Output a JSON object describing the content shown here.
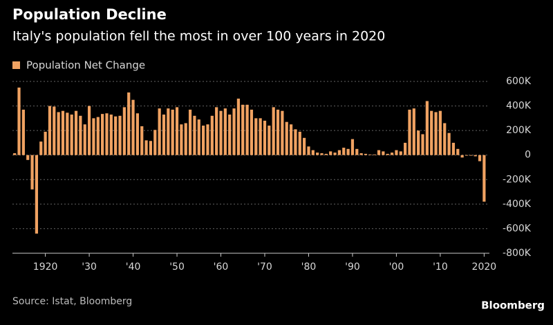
{
  "chart_data": {
    "type": "bar",
    "title": "Population Decline",
    "subtitle": "Italy's population fell the most in over 100 years in 2020",
    "source": "Source: Istat, Bloomberg",
    "brand": "Bloomberg",
    "color": "#f0a262",
    "grid": true,
    "legend": "top-left",
    "series": [
      {
        "name": "Population Net Change",
        "color": "#f0a262",
        "x": [
          1913,
          1914,
          1915,
          1916,
          1917,
          1918,
          1919,
          1920,
          1921,
          1922,
          1923,
          1924,
          1925,
          1926,
          1927,
          1928,
          1929,
          1930,
          1931,
          1932,
          1933,
          1934,
          1935,
          1936,
          1937,
          1938,
          1939,
          1940,
          1941,
          1942,
          1943,
          1944,
          1945,
          1946,
          1947,
          1948,
          1949,
          1950,
          1951,
          1952,
          1953,
          1954,
          1955,
          1956,
          1957,
          1958,
          1959,
          1960,
          1961,
          1962,
          1963,
          1964,
          1965,
          1966,
          1967,
          1968,
          1969,
          1970,
          1971,
          1972,
          1973,
          1974,
          1975,
          1976,
          1977,
          1978,
          1979,
          1980,
          1981,
          1982,
          1983,
          1984,
          1985,
          1986,
          1987,
          1988,
          1989,
          1990,
          1991,
          1992,
          1993,
          1994,
          1995,
          1996,
          1997,
          1998,
          1999,
          2000,
          2001,
          2002,
          2003,
          2004,
          2005,
          2006,
          2007,
          2008,
          2009,
          2010,
          2011,
          2012,
          2013,
          2014,
          2015,
          2016,
          2017,
          2018,
          2019,
          2020
        ],
        "values": [
          15000,
          550000,
          370000,
          -40000,
          -280000,
          -640000,
          110000,
          190000,
          400000,
          395000,
          350000,
          360000,
          345000,
          330000,
          360000,
          320000,
          250000,
          400000,
          300000,
          310000,
          335000,
          340000,
          330000,
          315000,
          320000,
          390000,
          510000,
          450000,
          340000,
          235000,
          120000,
          115000,
          205000,
          380000,
          330000,
          380000,
          370000,
          390000,
          250000,
          260000,
          370000,
          320000,
          290000,
          240000,
          250000,
          320000,
          390000,
          360000,
          380000,
          330000,
          380000,
          460000,
          410000,
          410000,
          370000,
          300000,
          300000,
          280000,
          240000,
          390000,
          370000,
          360000,
          270000,
          250000,
          210000,
          190000,
          140000,
          70000,
          40000,
          20000,
          15000,
          10000,
          30000,
          20000,
          40000,
          60000,
          50000,
          130000,
          50000,
          15000,
          10000,
          5000,
          5000,
          40000,
          30000,
          10000,
          20000,
          40000,
          30000,
          100000,
          370000,
          380000,
          200000,
          170000,
          440000,
          360000,
          350000,
          360000,
          260000,
          180000,
          100000,
          50000,
          -20000,
          -5000,
          -5000,
          -10000,
          -50000,
          -380000
        ]
      }
    ],
    "xlim": [
      1912.5,
      2021.2
    ],
    "xticks": [
      {
        "value": 1920,
        "label": "1920"
      },
      {
        "value": 1930,
        "label": "'30"
      },
      {
        "value": 1940,
        "label": "'40"
      },
      {
        "value": 1950,
        "label": "'50"
      },
      {
        "value": 1960,
        "label": "'60"
      },
      {
        "value": 1970,
        "label": "'70"
      },
      {
        "value": 1980,
        "label": "'80"
      },
      {
        "value": 1990,
        "label": "'90"
      },
      {
        "value": 2000,
        "label": "'00"
      },
      {
        "value": 2010,
        "label": "'10"
      },
      {
        "value": 2020,
        "label": "2020"
      }
    ],
    "ylim": [
      -800000,
      600000
    ],
    "yticks": [
      {
        "value": 600000,
        "label": "600K"
      },
      {
        "value": 400000,
        "label": "400K"
      },
      {
        "value": 200000,
        "label": "200K"
      },
      0,
      {
        "value": -200000,
        "label": "-200K"
      },
      {
        "value": -400000,
        "label": "-400K"
      },
      {
        "value": -600000,
        "label": "-600K"
      },
      {
        "value": -800000,
        "label": "-800K"
      }
    ]
  }
}
